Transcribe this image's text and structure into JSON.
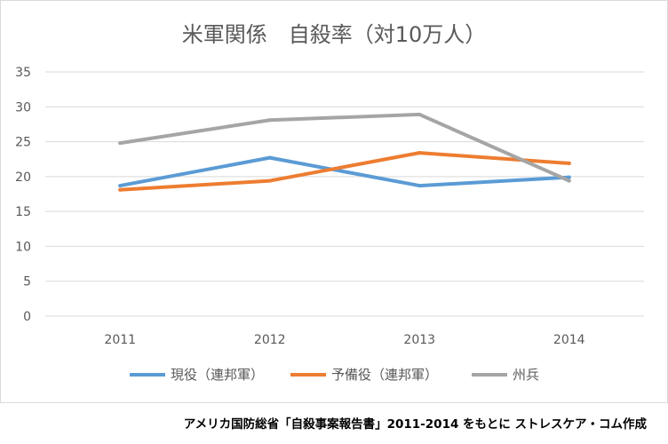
{
  "chart_data": {
    "type": "line",
    "title": "米軍関係　自殺率（対10万人）",
    "categories": [
      "2011",
      "2012",
      "2013",
      "2014"
    ],
    "ylim": [
      0,
      35
    ],
    "yticks": [
      "0",
      "5",
      "10",
      "15",
      "20",
      "25",
      "30",
      "35"
    ],
    "grid": true,
    "legend_position": "bottom",
    "series": [
      {
        "name": "現役（連邦軍）",
        "color": "#5b9bd5",
        "values": [
          18.7,
          22.7,
          18.7,
          19.9
        ]
      },
      {
        "name": "予備役（連邦軍）",
        "color": "#ed7d31",
        "values": [
          18.1,
          19.4,
          23.4,
          21.9
        ]
      },
      {
        "name": "州兵",
        "color": "#a5a5a5",
        "values": [
          24.8,
          28.1,
          28.9,
          19.4
        ]
      }
    ]
  },
  "source_note": "アメリカ国防総省「自殺事案報告書」2011-2014 をもとに ストレスケア・コム作成"
}
